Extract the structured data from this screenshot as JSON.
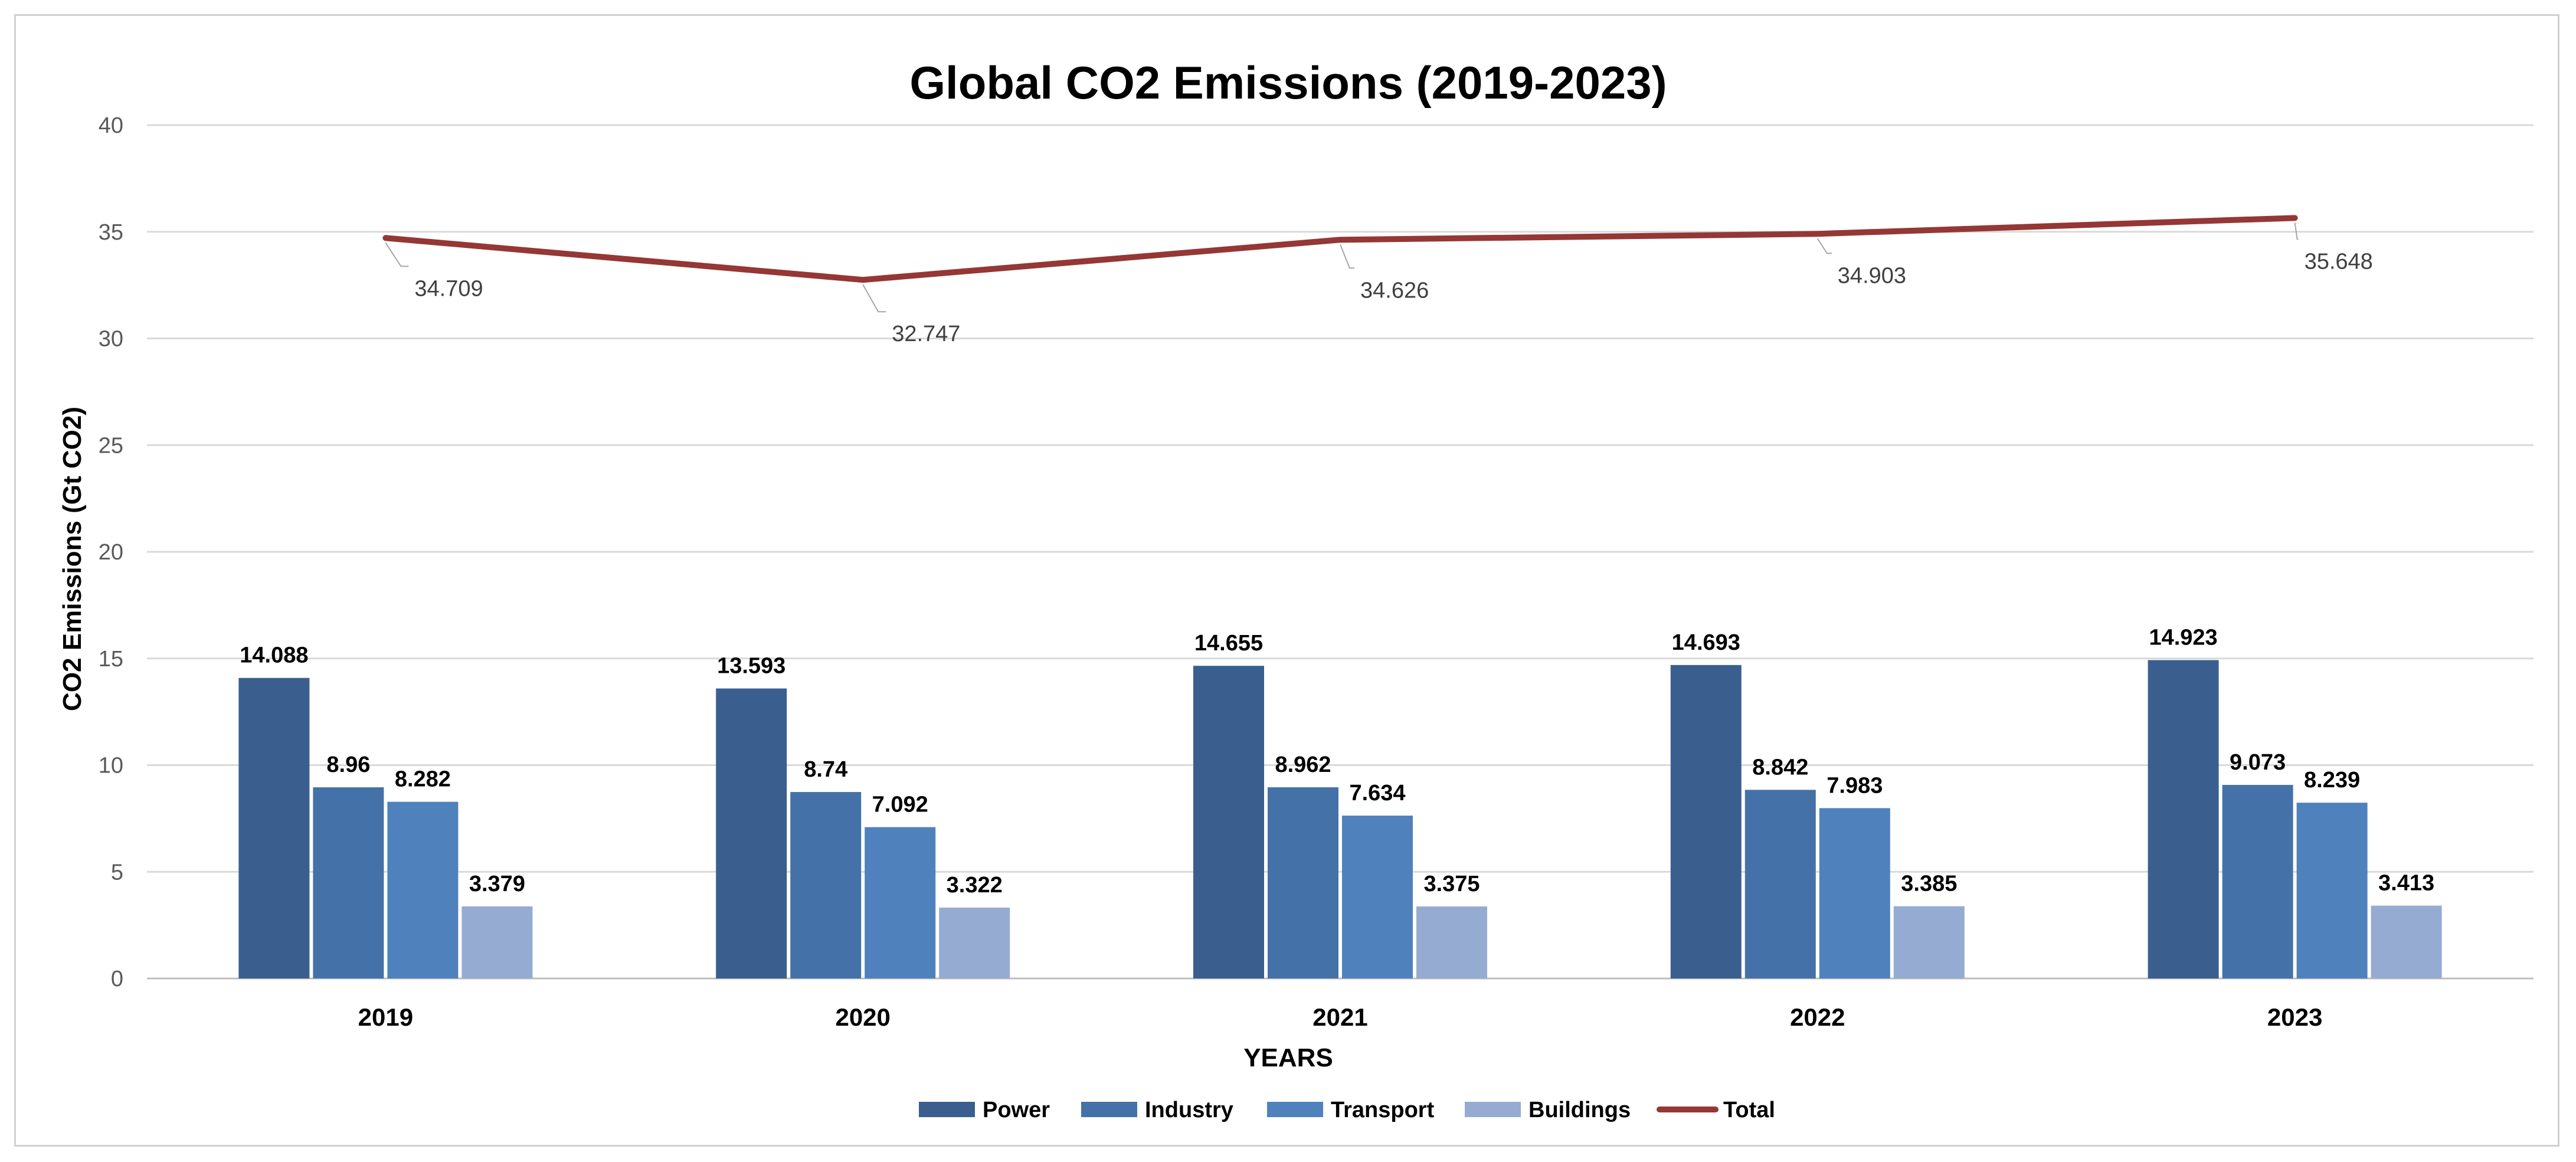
{
  "chart_data": {
    "type": "bar",
    "title": "Global CO2 Emissions (2019-2023)",
    "xlabel": "YEARS",
    "ylabel": "CO2 Emissions (Gt CO2)",
    "ylim": [
      0,
      40
    ],
    "yticks": [
      0,
      5,
      10,
      15,
      20,
      25,
      30,
      35,
      40
    ],
    "categories": [
      "2019",
      "2020",
      "2021",
      "2022",
      "2023"
    ],
    "series": [
      {
        "name": "Power",
        "type": "bar",
        "color": "#3a5f8f",
        "values": [
          14.088,
          13.593,
          14.655,
          14.693,
          14.923
        ]
      },
      {
        "name": "Industry",
        "type": "bar",
        "color": "#4472a8",
        "values": [
          8.96,
          8.74,
          8.962,
          8.842,
          9.073
        ]
      },
      {
        "name": "Transport",
        "type": "bar",
        "color": "#4f81bd",
        "values": [
          8.282,
          7.092,
          7.634,
          7.983,
          8.239
        ]
      },
      {
        "name": "Buildings",
        "type": "bar",
        "color": "#95abd2",
        "values": [
          3.379,
          3.322,
          3.375,
          3.385,
          3.413
        ]
      },
      {
        "name": "Total",
        "type": "line",
        "color": "#953735",
        "values": [
          34.709,
          32.747,
          34.626,
          34.903,
          35.648
        ]
      }
    ],
    "legend_position": "bottom",
    "grid": true
  }
}
